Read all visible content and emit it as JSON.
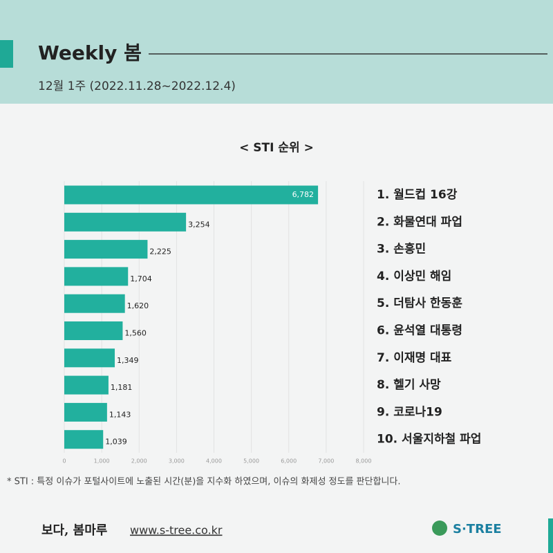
{
  "header": {
    "title": "Weekly 봄",
    "subtitle": "12월 1주 (2022.11.28~2022.12.4)"
  },
  "chart_data": {
    "type": "bar",
    "orientation": "horizontal",
    "title": "< STI 순위 >",
    "categories": [
      "1. 월드컵 16강",
      "2. 화물연대 파업",
      "3. 손흥민",
      "4. 이상민 해임",
      "5. 더탐사 한동훈",
      "6. 윤석열 대통령",
      "7. 이재명 대표",
      "8. 헬기 사망",
      "9. 코로나19",
      "10. 서울지하철 파업"
    ],
    "values": [
      6782,
      3254,
      2225,
      1704,
      1620,
      1560,
      1349,
      1181,
      1143,
      1039
    ],
    "value_labels": [
      "6,782",
      "3,254",
      "2,225",
      "1,704",
      "1,620",
      "1,560",
      "1,349",
      "1,181",
      "1,143",
      "1,039"
    ],
    "color": "#22b09e",
    "xlim": [
      0,
      8000
    ],
    "xticks": [
      0,
      {
        "value": 1000,
        "label": "1,000"
      },
      {
        "value": 2000,
        "label": "2,000"
      },
      {
        "value": 3000,
        "label": "3,000"
      },
      {
        "value": 4000,
        "label": "4,000"
      },
      {
        "value": 5000,
        "label": "5,000"
      },
      {
        "value": 6000,
        "label": "6,000"
      },
      {
        "value": 7000,
        "label": "7,000"
      },
      {
        "value": 8000,
        "label": "8,000"
      }
    ],
    "grid": true
  },
  "footnote": "* STI : 특정 이슈가 포털사이트에 노출된 시간(분)을 지수화 하였으며, 이슈의 화제성 정도를 판단합니다.",
  "footer": {
    "brand": "보다, 봄마루",
    "url": "www.s-tree.co.kr",
    "logo": "S·TREE"
  }
}
